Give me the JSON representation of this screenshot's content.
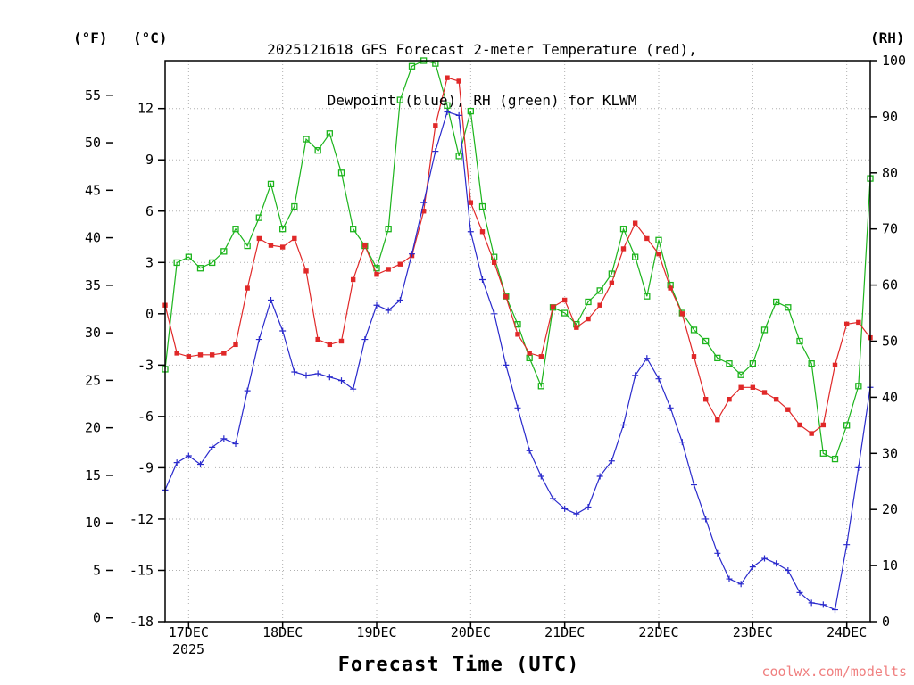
{
  "header": {
    "title_line1": "2025121618 GFS Forecast 2-meter Temperature (red),",
    "title_line2": "Dewpoint (blue), RH (green) for KLWM",
    "f_axis_label": "(°F)",
    "c_axis_label": "(°C)",
    "rh_axis_label": "(RH)"
  },
  "footer": {
    "x_axis_title": "Forecast Time (UTC)",
    "watermark": "coolwx.com/modelts"
  },
  "colors": {
    "temperature": "#e02828",
    "dewpoint": "#2a2acc",
    "rh": "#1cb41c",
    "grid": "#b0b0b0",
    "axis": "#000000",
    "watermark": "#f08080"
  },
  "chart_data": {
    "type": "line",
    "title": "2025121618 GFS Forecast 2-meter Temperature (red), Dewpoint (blue), RH (green) for KLWM",
    "station": "KLWM",
    "model_run": "2025121618",
    "legend_position": "in-title",
    "grid": "dotted",
    "x_axis": {
      "label": "Forecast Time (UTC)",
      "hour_step": 3,
      "hour_range": [
        0,
        180
      ],
      "hours_since_run": [
        0,
        3,
        6,
        9,
        12,
        15,
        18,
        21,
        24,
        27,
        30,
        33,
        36,
        39,
        42,
        45,
        48,
        51,
        54,
        57,
        60,
        63,
        66,
        69,
        72,
        75,
        78,
        81,
        84,
        87,
        90,
        93,
        96,
        99,
        102,
        105,
        108,
        111,
        114,
        117,
        120,
        123,
        126,
        129,
        132,
        135,
        138,
        141,
        144,
        147,
        150,
        153,
        156,
        159,
        162,
        165,
        168,
        171,
        174,
        177,
        180
      ],
      "day_tick_labels": [
        "17DEC",
        "18DEC",
        "19DEC",
        "20DEC",
        "21DEC",
        "22DEC",
        "23DEC",
        "24DEC"
      ],
      "day_tick_hours": [
        6,
        30,
        54,
        78,
        102,
        126,
        150,
        174
      ],
      "year_label": "2025"
    },
    "y_axes": {
      "celsius_ticks": [
        -18,
        -15,
        -12,
        -9,
        -6,
        -3,
        0,
        3,
        6,
        9,
        12
      ],
      "fahrenheit_ticks": [
        0,
        5,
        10,
        15,
        20,
        25,
        30,
        35,
        40,
        45,
        50,
        55
      ],
      "rh_ticks": [
        0,
        10,
        20,
        30,
        40,
        50,
        60,
        70,
        80,
        90,
        100
      ],
      "celsius_range": [
        -18,
        14.8
      ],
      "rh_range": [
        0,
        100
      ]
    },
    "series": [
      {
        "name": "2-meter Temperature",
        "unit": "°C",
        "color_key": "temperature",
        "marker": "filled-square",
        "values": [
          0.5,
          -2.3,
          -2.5,
          -2.4,
          -2.4,
          -2.3,
          -1.8,
          1.5,
          4.4,
          4.0,
          3.9,
          4.4,
          2.5,
          -1.5,
          -1.8,
          -1.6,
          2.0,
          4.0,
          2.3,
          2.6,
          2.9,
          3.4,
          6.0,
          11.0,
          13.8,
          13.6,
          6.5,
          4.8,
          3.0,
          1.0,
          -1.2,
          -2.3,
          -2.5,
          0.4,
          0.8,
          -0.8,
          -0.3,
          0.5,
          1.8,
          3.8,
          5.3,
          4.4,
          3.5,
          1.5,
          0.0,
          -2.5,
          -5.0,
          -6.2,
          -5.0,
          -4.3,
          -4.3,
          -4.6,
          -5.0,
          -5.6,
          -6.5,
          -7.0,
          -6.5,
          -3.0,
          -0.6,
          -0.5,
          -1.4
        ]
      },
      {
        "name": "Dewpoint",
        "unit": "°C",
        "color_key": "dewpoint",
        "marker": "plus",
        "values": [
          -10.3,
          -8.7,
          -8.3,
          -8.8,
          -7.8,
          -7.3,
          -7.6,
          -4.5,
          -1.5,
          0.8,
          -1.0,
          -3.4,
          -3.6,
          -3.5,
          -3.7,
          -3.9,
          -4.4,
          -1.5,
          0.5,
          0.2,
          0.8,
          3.5,
          6.5,
          9.5,
          11.8,
          11.6,
          4.8,
          2.0,
          0.0,
          -3.0,
          -5.5,
          -8.0,
          -9.5,
          -10.8,
          -11.4,
          -11.7,
          -11.3,
          -9.5,
          -8.6,
          -6.5,
          -3.6,
          -2.6,
          -3.8,
          -5.5,
          -7.5,
          -10.0,
          -12.0,
          -14.0,
          -15.5,
          -15.8,
          -14.8,
          -14.3,
          -14.6,
          -15.0,
          -16.3,
          -16.9,
          -17.0,
          -17.3,
          -13.5,
          -9.0,
          -4.3
        ]
      },
      {
        "name": "Relative Humidity",
        "unit": "%",
        "color_key": "rh",
        "marker": "open-square",
        "values": [
          45,
          64,
          65,
          63,
          64,
          66,
          70,
          67,
          72,
          78,
          70,
          74,
          86,
          84,
          87,
          80,
          70,
          67,
          63,
          70,
          93,
          99,
          100,
          99.5,
          92,
          83,
          91,
          74,
          65,
          58,
          53,
          47,
          42,
          56,
          55,
          53,
          57,
          59,
          62,
          70,
          65,
          58,
          68,
          60,
          55,
          52,
          50,
          47,
          46,
          44,
          46,
          52,
          57,
          56,
          50,
          46,
          30,
          29,
          35,
          42,
          79
        ]
      }
    ]
  }
}
